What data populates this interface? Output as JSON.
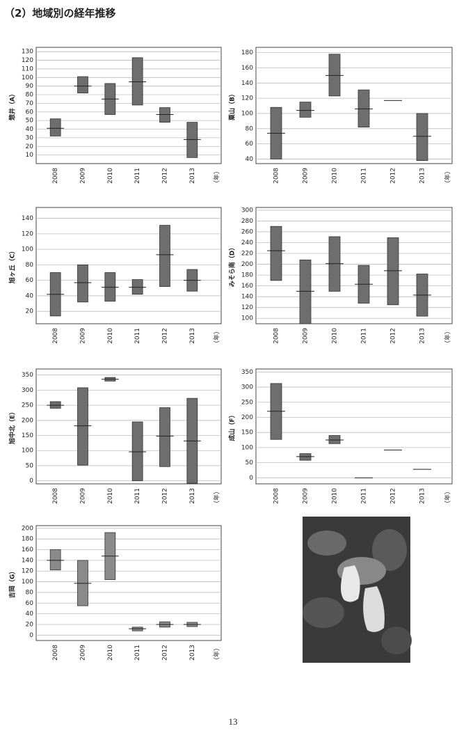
{
  "title": "（2）地域別の経年推移",
  "page_number": "13",
  "chart_data": [
    {
      "type": "range",
      "ylabel": "惣井（A）",
      "xlabel": "（年）",
      "categories": [
        "2008",
        "2009",
        "2010",
        "2011",
        "2012",
        "2013"
      ],
      "low": [
        32,
        82,
        57,
        68,
        48,
        7
      ],
      "high": [
        52,
        101,
        93,
        123,
        65,
        48
      ],
      "mean": [
        41,
        90,
        75,
        95,
        57,
        28
      ],
      "ylim": [
        0,
        135
      ],
      "yticks": [
        10,
        20,
        30,
        40,
        50,
        60,
        70,
        80,
        90,
        100,
        110,
        120,
        130
      ],
      "color": "#6e6e6e",
      "grid": true
    },
    {
      "type": "range",
      "ylabel": "粟山（B）",
      "xlabel": "（年）",
      "categories": [
        "2008",
        "2009",
        "2010",
        "2011",
        "2012",
        "2013"
      ],
      "low": [
        40,
        95,
        123,
        82,
        117,
        38
      ],
      "high": [
        108,
        115,
        178,
        131,
        117,
        100
      ],
      "mean": [
        74,
        104,
        150,
        106,
        117,
        70
      ],
      "ylim": [
        34,
        187
      ],
      "yticks": [
        40,
        60,
        80,
        100,
        120,
        140,
        160,
        180
      ],
      "color": "#6e6e6e",
      "grid": true
    },
    {
      "type": "range",
      "ylabel": "旭ヶ丘（C）",
      "xlabel": "（年）",
      "categories": [
        "2008",
        "2009",
        "2010",
        "2011",
        "2012",
        "2013"
      ],
      "low": [
        14,
        32,
        33,
        42,
        52,
        46
      ],
      "high": [
        70,
        80,
        70,
        61,
        131,
        74
      ],
      "mean": [
        42,
        57,
        51,
        51,
        93,
        60
      ],
      "ylim": [
        4,
        154
      ],
      "yticks": [
        20,
        40,
        60,
        80,
        100,
        120,
        140
      ],
      "color": "#6e6e6e",
      "grid": true
    },
    {
      "type": "range",
      "ylabel": "みそら南（D）",
      "xlabel": "（年）",
      "categories": [
        "2008",
        "2009",
        "2010",
        "2011",
        "2012",
        "2013"
      ],
      "low": [
        170,
        90,
        150,
        128,
        125,
        104
      ],
      "high": [
        270,
        208,
        251,
        198,
        249,
        182
      ],
      "mean": [
        225,
        150,
        201,
        163,
        188,
        143
      ],
      "ylim": [
        90,
        305
      ],
      "yticks": [
        100,
        120,
        140,
        160,
        180,
        200,
        220,
        240,
        260,
        280,
        300
      ],
      "color": "#6e6e6e",
      "grid": true
    },
    {
      "type": "range",
      "ylabel": "旭中北（E）",
      "xlabel": "（年）",
      "categories": [
        "2008",
        "2009",
        "2010",
        "2011",
        "2012",
        "2013"
      ],
      "low": [
        240,
        52,
        330,
        0,
        47,
        -8
      ],
      "high": [
        262,
        308,
        342,
        195,
        242,
        273
      ],
      "mean": [
        250,
        182,
        336,
        96,
        148,
        132
      ],
      "ylim": [
        -10,
        370
      ],
      "yticks": [
        0,
        50,
        100,
        150,
        200,
        250,
        300,
        350
      ],
      "color": "#6e6e6e",
      "grid": true
    },
    {
      "type": "range",
      "ylabel": "成山（F）",
      "xlabel": "（年）",
      "categories": [
        "2008",
        "2009",
        "2010",
        "2011",
        "2012",
        "2013"
      ],
      "low": [
        127,
        58,
        113,
        0,
        92,
        28
      ],
      "high": [
        312,
        80,
        140,
        0,
        92,
        28
      ],
      "mean": [
        220,
        70,
        125,
        0,
        92,
        28
      ],
      "ylim": [
        -20,
        360
      ],
      "yticks": [
        0,
        50,
        100,
        150,
        200,
        250,
        300,
        350
      ],
      "color": "#6e6e6e",
      "grid": true
    },
    {
      "type": "range",
      "ylabel": "吉岡（G）",
      "xlabel": "（年）",
      "categories": [
        "2008",
        "2009",
        "2010",
        "2011",
        "2012",
        "2013"
      ],
      "low": [
        122,
        55,
        104,
        8,
        15,
        16
      ],
      "high": [
        160,
        140,
        192,
        15,
        25,
        24
      ],
      "mean": [
        140,
        97,
        148,
        12,
        20,
        20
      ],
      "ylim": [
        -10,
        205
      ],
      "yticks": [
        0,
        20,
        40,
        60,
        80,
        100,
        120,
        140,
        160,
        180,
        200
      ],
      "color": "#8a8a8a",
      "grid": true
    }
  ]
}
